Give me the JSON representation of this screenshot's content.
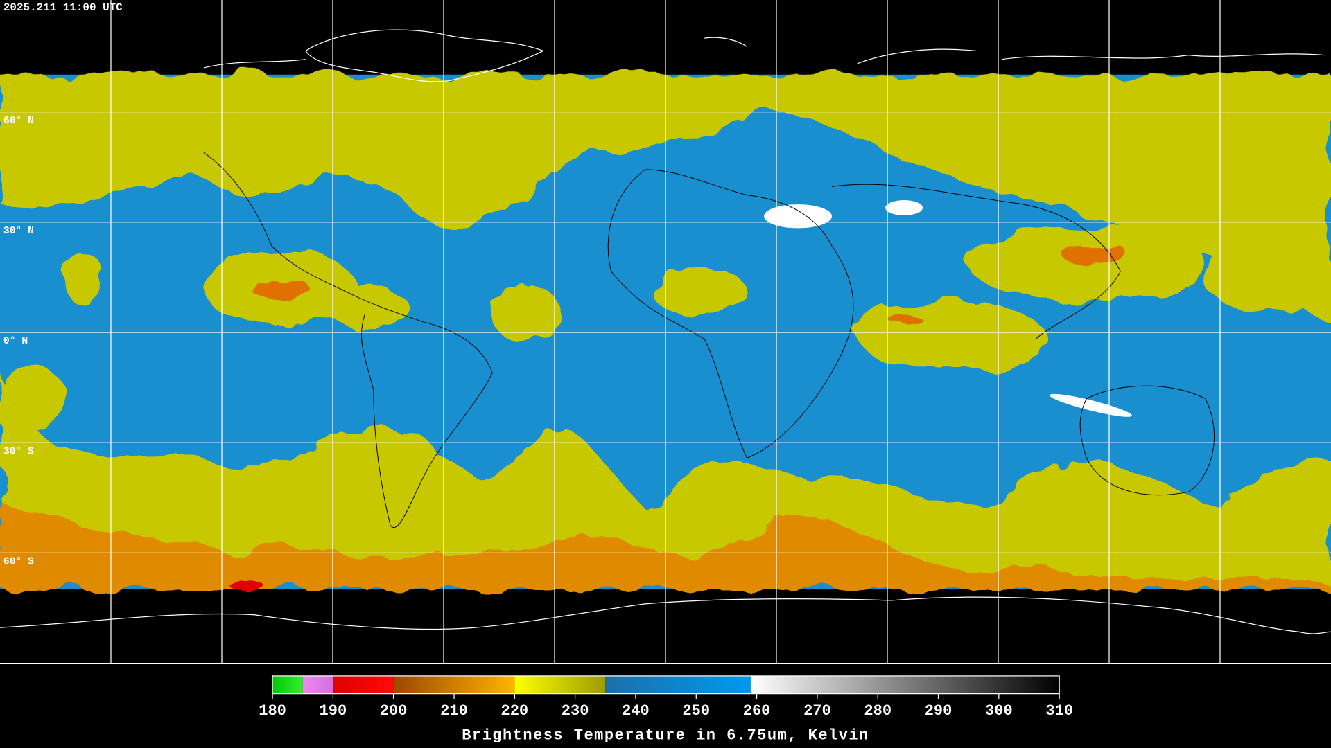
{
  "map": {
    "timestamp": "2025.211 11:00 UTC",
    "latitude_labels": [
      {
        "value": 60,
        "label": "60° N"
      },
      {
        "value": 30,
        "label": "30° N"
      },
      {
        "value": 0,
        "label": "0° N"
      },
      {
        "value": -30,
        "label": "30° S"
      },
      {
        "value": -60,
        "label": "60° S"
      }
    ],
    "colorbar": {
      "title": "Brightness Temperature in 6.75um, Kelvin",
      "lim": [
        180,
        310
      ],
      "ticks": [
        180,
        190,
        200,
        210,
        220,
        230,
        240,
        250,
        260,
        270,
        280,
        290,
        300,
        310
      ],
      "segments": [
        {
          "range": [
            180,
            185
          ],
          "colors": [
            "#00c800",
            "#33ee33"
          ]
        },
        {
          "range": [
            185,
            190
          ],
          "colors": [
            "#f088f0",
            "#d070e0"
          ]
        },
        {
          "range": [
            190,
            200
          ],
          "colors": [
            "#e00000",
            "#ff0a0a"
          ]
        },
        {
          "range": [
            200,
            220
          ],
          "colors": [
            "#9a4800",
            "#ffb400"
          ]
        },
        {
          "range": [
            220,
            235
          ],
          "colors": [
            "#ffff00",
            "#9c9c00"
          ]
        },
        {
          "range": [
            235,
            259
          ],
          "colors": [
            "#1c70a8",
            "#0099ee"
          ]
        },
        {
          "range": [
            259,
            310
          ],
          "colors": [
            "#ffffff",
            "#000000"
          ]
        }
      ]
    }
  }
}
